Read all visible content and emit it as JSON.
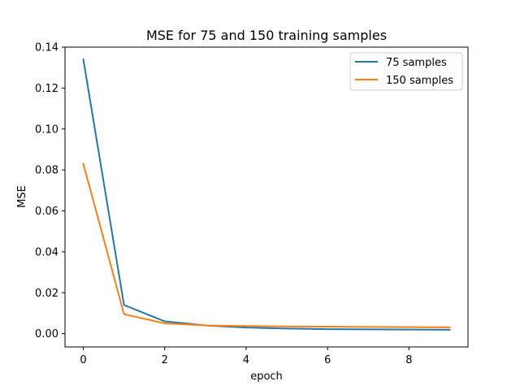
{
  "chart_data": {
    "type": "line",
    "title": "MSE for 75 and 150 training samples",
    "xlabel": "epoch",
    "ylabel": "MSE",
    "x": [
      0,
      1,
      2,
      3,
      4,
      5,
      6,
      7,
      8,
      9
    ],
    "xlim": [
      -0.45,
      9.45
    ],
    "ylim": [
      -0.0065,
      0.14
    ],
    "xticks": [
      0,
      2,
      4,
      6,
      8
    ],
    "xtick_labels": [
      "0",
      "2",
      "4",
      "6",
      "8"
    ],
    "yticks": [
      0.0,
      0.02,
      0.04,
      0.06,
      0.08,
      0.1,
      0.12,
      0.14
    ],
    "ytick_labels": [
      "0.00",
      "0.02",
      "0.04",
      "0.06",
      "0.08",
      "0.10",
      "0.12",
      "0.14"
    ],
    "grid": false,
    "legend_position": "top-right",
    "series": [
      {
        "name": "75 samples",
        "color": "#1f77b4",
        "values": [
          0.134,
          0.014,
          0.006,
          0.004,
          0.003,
          0.0025,
          0.0022,
          0.0021,
          0.002,
          0.0019
        ]
      },
      {
        "name": "150 samples",
        "color": "#ff7f0e",
        "values": [
          0.083,
          0.0095,
          0.005,
          0.004,
          0.0037,
          0.0035,
          0.0034,
          0.0033,
          0.0032,
          0.0031
        ]
      }
    ]
  }
}
